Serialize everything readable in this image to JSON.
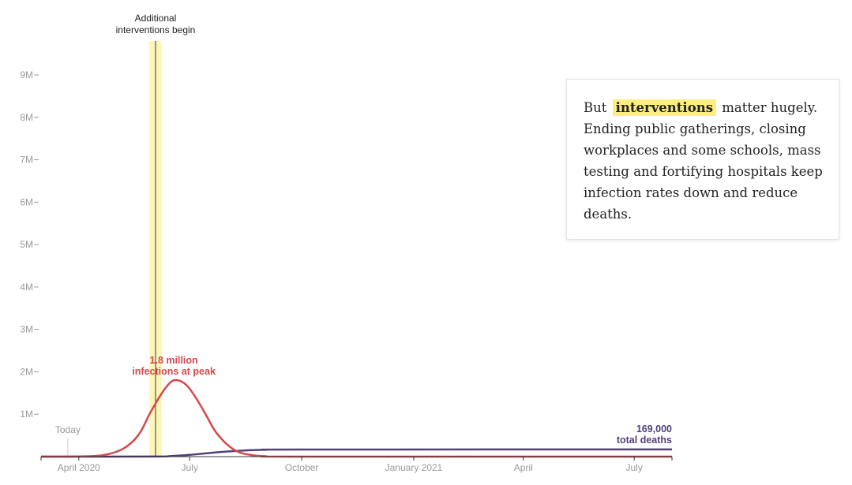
{
  "colors": {
    "infections": "#d6484b",
    "deaths": "#533f7a",
    "highlight_band": "#fdf6b8",
    "highlight_text": "#fcef7d",
    "axis": "#333333",
    "ticks": "#999999"
  },
  "chart_data": {
    "type": "line",
    "xlim": [
      "2020-03-01",
      "2021-08-01"
    ],
    "ylim": [
      0,
      9800000
    ],
    "grid": false,
    "y_ticks": [
      {
        "value": 1000000,
        "label": "1M"
      },
      {
        "value": 2000000,
        "label": "2M"
      },
      {
        "value": 3000000,
        "label": "3M"
      },
      {
        "value": 4000000,
        "label": "4M"
      },
      {
        "value": 5000000,
        "label": "5M"
      },
      {
        "value": 6000000,
        "label": "6M"
      },
      {
        "value": 7000000,
        "label": "7M"
      },
      {
        "value": 8000000,
        "label": "8M"
      },
      {
        "value": 9000000,
        "label": "9M"
      }
    ],
    "x_ticks": [
      {
        "date": "2020-04-01",
        "label": "April 2020"
      },
      {
        "date": "2020-07-01",
        "label": "July"
      },
      {
        "date": "2020-10-01",
        "label": "October"
      },
      {
        "date": "2021-01-01",
        "label": "January 2021"
      },
      {
        "date": "2021-04-01",
        "label": "April"
      },
      {
        "date": "2021-07-01",
        "label": "July"
      }
    ],
    "today": {
      "date": "2020-03-23",
      "label": "Today"
    },
    "intervention": {
      "date": "2020-06-03",
      "band_start": "2020-05-29",
      "band_end": "2020-06-08",
      "label_lines": [
        "Additional",
        "interventions begin"
      ]
    },
    "series": [
      {
        "key": "infections",
        "x": [
          "2020-03-01",
          "2020-04-01",
          "2020-04-20",
          "2020-05-05",
          "2020-05-15",
          "2020-05-22",
          "2020-05-29",
          "2020-06-05",
          "2020-06-12",
          "2020-06-18",
          "2020-06-25",
          "2020-07-01",
          "2020-07-08",
          "2020-07-15",
          "2020-07-22",
          "2020-08-01",
          "2020-08-10",
          "2020-08-20",
          "2020-09-01",
          "2020-10-01",
          "2021-08-01"
        ],
        "y": [
          0,
          5000,
          30000,
          150000,
          350000,
          600000,
          1000000,
          1350000,
          1650000,
          1800000,
          1760000,
          1600000,
          1300000,
          950000,
          600000,
          280000,
          110000,
          40000,
          10000,
          0,
          0
        ]
      },
      {
        "key": "deaths",
        "x": [
          "2020-03-01",
          "2020-06-01",
          "2020-06-15",
          "2020-07-01",
          "2020-07-15",
          "2020-08-01",
          "2020-08-15",
          "2020-09-01",
          "2020-10-01",
          "2021-08-01"
        ],
        "y": [
          0,
          2000,
          12000,
          40000,
          80000,
          120000,
          145000,
          160000,
          167000,
          169000
        ]
      }
    ],
    "annotations": [
      {
        "series": "infections",
        "lines": [
          "1.8 million",
          "infections at peak"
        ]
      },
      {
        "series": "deaths",
        "lines": [
          "169,000",
          "total deaths"
        ]
      }
    ]
  },
  "callout": {
    "before": "But",
    "highlight": "interventions",
    "after": "matter hugely. Ending public gatherings, closing workplaces and some schools, mass testing and fortifying hospitals keep infection rates down and reduce deaths."
  }
}
